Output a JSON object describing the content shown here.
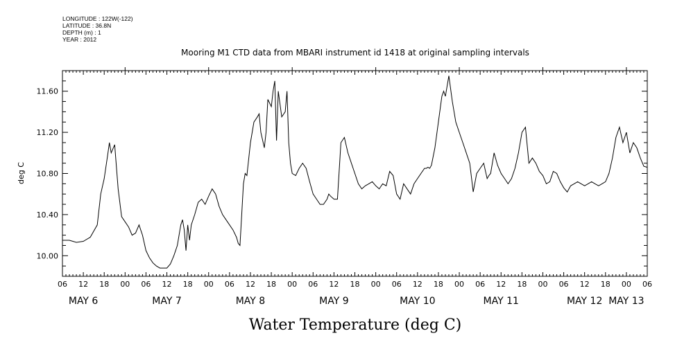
{
  "header": {
    "longitude": "LONGITUDE : 122W(-122)",
    "latitude": "LATITUDE : 36.8N",
    "depth": "DEPTH (m) : 1",
    "year": "YEAR : 2012"
  },
  "chart_data": {
    "type": "line",
    "title": "Mooring M1 CTD data from MBARI instrument id 1418 at original sampling intervals",
    "xlabel": "Water Temperature (deg C)",
    "ylabel": "deg C",
    "ylim": [
      9.8,
      11.8
    ],
    "yticks": [
      "10.00",
      "10.40",
      "10.80",
      "11.20",
      "11.60"
    ],
    "xlim_hours": [
      6,
      174
    ],
    "hour_tick_labels": [
      "06",
      "12",
      "18",
      "00",
      "06",
      "12",
      "18",
      "00",
      "06",
      "12",
      "18",
      "00",
      "06",
      "12",
      "18",
      "00",
      "06",
      "12",
      "18",
      "00",
      "06",
      "12",
      "18",
      "00",
      "06",
      "12",
      "18",
      "00",
      "06"
    ],
    "day_labels": [
      {
        "label": "MAY  6",
        "hour": 12
      },
      {
        "label": "MAY  7",
        "hour": 36
      },
      {
        "label": "MAY  8",
        "hour": 60
      },
      {
        "label": "MAY  9",
        "hour": 84
      },
      {
        "label": "MAY 10",
        "hour": 108
      },
      {
        "label": "MAY 11",
        "hour": 132
      },
      {
        "label": "MAY 12",
        "hour": 156
      },
      {
        "label": "MAY 13",
        "hour": 168
      }
    ],
    "grid": false,
    "series": [
      {
        "x": [
          6,
          8,
          10,
          12,
          14,
          16,
          17,
          18,
          19,
          19.5,
          20,
          21,
          22,
          23,
          24,
          25,
          26,
          27,
          28,
          29,
          30,
          31,
          32,
          33,
          34,
          35,
          36,
          37,
          38,
          39,
          40,
          40.5,
          41,
          41.5,
          42,
          42.5,
          43,
          44,
          45,
          46,
          47,
          48,
          49,
          50,
          51,
          52,
          53,
          54,
          55,
          56,
          56.5,
          57,
          58,
          58.5,
          59,
          60,
          61,
          62,
          62.5,
          63,
          64,
          64.5,
          65,
          66,
          66.5,
          67,
          67.5,
          68,
          69,
          70,
          70.5,
          71,
          71.5,
          72,
          73,
          74,
          75,
          76,
          77,
          78,
          79,
          80,
          81,
          82,
          82.5,
          83,
          84,
          85,
          86,
          87,
          88,
          89,
          90,
          91,
          92,
          93,
          94,
          95,
          96,
          97,
          98,
          99,
          100,
          101,
          102,
          103,
          104,
          105,
          106,
          107,
          108,
          109,
          110,
          110.5,
          111,
          111.5,
          112,
          113,
          114,
          115,
          115.5,
          116,
          117,
          118,
          119,
          120,
          121,
          122,
          123,
          124,
          125,
          126,
          127,
          128,
          128.5,
          129,
          130,
          131,
          132,
          133,
          134,
          135,
          136,
          137,
          138,
          139,
          140,
          141,
          142,
          143,
          144,
          145,
          146,
          147,
          148,
          149,
          150,
          151,
          152,
          153,
          154,
          155,
          156,
          157,
          158,
          159,
          160,
          161,
          162,
          163,
          164,
          165,
          166,
          167,
          168,
          169,
          170,
          171,
          172,
          173,
          174
        ],
        "values": [
          10.15,
          10.15,
          10.13,
          10.14,
          10.18,
          10.3,
          10.6,
          10.75,
          10.98,
          11.1,
          11.0,
          11.08,
          10.65,
          10.38,
          10.33,
          10.28,
          10.2,
          10.22,
          10.3,
          10.2,
          10.05,
          9.98,
          9.93,
          9.9,
          9.88,
          9.88,
          9.88,
          9.92,
          10.0,
          10.1,
          10.3,
          10.35,
          10.25,
          10.05,
          10.3,
          10.15,
          10.3,
          10.4,
          10.52,
          10.55,
          10.5,
          10.58,
          10.65,
          10.6,
          10.48,
          10.4,
          10.35,
          10.3,
          10.25,
          10.18,
          10.12,
          10.1,
          10.7,
          10.8,
          10.78,
          11.1,
          11.3,
          11.35,
          11.38,
          11.2,
          11.05,
          11.2,
          11.52,
          11.45,
          11.6,
          11.7,
          11.12,
          11.6,
          11.35,
          11.4,
          11.6,
          11.1,
          10.9,
          10.8,
          10.78,
          10.85,
          10.9,
          10.85,
          10.72,
          10.6,
          10.55,
          10.5,
          10.5,
          10.55,
          10.6,
          10.58,
          10.55,
          10.55,
          11.1,
          11.15,
          11.0,
          10.9,
          10.8,
          10.7,
          10.65,
          10.68,
          10.7,
          10.72,
          10.68,
          10.65,
          10.7,
          10.68,
          10.82,
          10.78,
          10.6,
          10.55,
          10.7,
          10.65,
          10.6,
          10.7,
          10.75,
          10.8,
          10.85,
          10.85,
          10.86,
          10.85,
          10.88,
          11.05,
          11.3,
          11.55,
          11.6,
          11.55,
          11.75,
          11.5,
          11.3,
          11.2,
          11.1,
          11.0,
          10.9,
          10.62,
          10.8,
          10.85,
          10.9,
          10.75,
          10.78,
          10.8,
          11.0,
          10.88,
          10.8,
          10.75,
          10.7,
          10.75,
          10.85,
          11.0,
          11.2,
          11.25,
          10.9,
          10.95,
          10.9,
          10.82,
          10.78,
          10.7,
          10.72,
          10.82,
          10.8,
          10.72,
          10.66,
          10.62,
          10.68,
          10.7,
          10.72,
          10.7,
          10.68,
          10.7,
          10.72,
          10.7,
          10.68,
          10.7,
          10.72,
          10.8,
          10.95,
          11.15,
          11.25,
          11.1,
          11.2,
          11.0,
          11.1,
          11.05,
          10.95,
          10.87,
          10.86
        ]
      }
    ]
  }
}
